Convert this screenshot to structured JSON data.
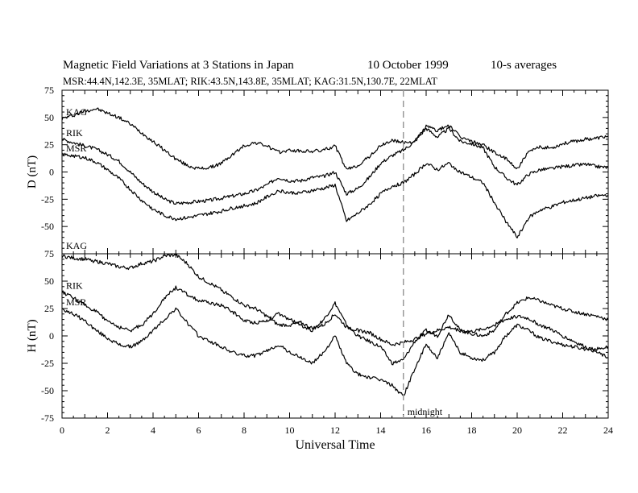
{
  "header": {
    "title": "Magnetic Field Variations at 3 Stations in Japan",
    "date": "10 October 1999",
    "averaging": "10-s averages",
    "stations_info": "MSR:44.4N,142.3E, 35MLAT;   RIK:43.5N,143.8E, 35MLAT;   KAG:31.5N,130.7E, 22MLAT"
  },
  "annotation": {
    "midnight_label": "midnight",
    "midnight_ut": 15
  },
  "colors": {
    "line": "#000000",
    "midnight_line": "#999999"
  },
  "chart_data": [
    {
      "type": "line",
      "ylabel": "D (nT)",
      "xlabel": "",
      "xlim": [
        0,
        24
      ],
      "ylim": [
        -75,
        75
      ],
      "yticks": [
        -75,
        -50,
        -25,
        0,
        25,
        50,
        75
      ],
      "ytick_labels": [
        "-75",
        "-50",
        "-25",
        "0",
        "25",
        "50",
        "75"
      ],
      "x": [
        0,
        0.5,
        1,
        1.5,
        2,
        2.5,
        3,
        3.5,
        4,
        4.5,
        5,
        5.5,
        6,
        6.5,
        7,
        7.5,
        8,
        8.5,
        9,
        9.5,
        10,
        10.5,
        11,
        11.5,
        12,
        12.5,
        13,
        13.5,
        14,
        14.5,
        15,
        15.5,
        16,
        16.5,
        17,
        17.5,
        18,
        18.5,
        19,
        19.5,
        20,
        20.5,
        21,
        21.5,
        22,
        22.5,
        23,
        23.5,
        24
      ],
      "series": [
        {
          "name": "KAG",
          "values": [
            49,
            52,
            56,
            58,
            54,
            50,
            44,
            36,
            28,
            20,
            12,
            6,
            3,
            4,
            8,
            16,
            24,
            27,
            24,
            18,
            20,
            19,
            19,
            20,
            24,
            2,
            6,
            14,
            24,
            29,
            27,
            28,
            42,
            38,
            43,
            32,
            28,
            25,
            18,
            12,
            3,
            18,
            23,
            22,
            26,
            28,
            30,
            31,
            33
          ]
        },
        {
          "name": "RIK",
          "values": [
            30,
            27,
            24,
            21,
            16,
            10,
            0,
            -10,
            -18,
            -25,
            -29,
            -28,
            -27,
            -26,
            -24,
            -22,
            -20,
            -17,
            -12,
            -5,
            -8,
            -8,
            -5,
            -4,
            0,
            -20,
            -15,
            -5,
            8,
            15,
            20,
            28,
            40,
            32,
            40,
            28,
            26,
            22,
            5,
            -5,
            -12,
            -2,
            2,
            3,
            5,
            6,
            7,
            5,
            4
          ]
        },
        {
          "name": "MSR",
          "values": [
            16,
            15,
            13,
            9,
            2,
            -6,
            -16,
            -26,
            -34,
            -40,
            -43,
            -42,
            -40,
            -38,
            -36,
            -33,
            -31,
            -29,
            -23,
            -17,
            -19,
            -19,
            -17,
            -15,
            -12,
            -45,
            -38,
            -30,
            -20,
            -13,
            -10,
            -2,
            8,
            2,
            8,
            0,
            -5,
            -10,
            -28,
            -45,
            -60,
            -42,
            -35,
            -32,
            -28,
            -26,
            -24,
            -22,
            -21
          ]
        }
      ]
    },
    {
      "type": "line",
      "ylabel": "H (nT)",
      "xlabel": "Universal Time",
      "xlim": [
        0,
        24
      ],
      "ylim": [
        -75,
        75
      ],
      "xticks": [
        0,
        2,
        4,
        6,
        8,
        10,
        12,
        14,
        16,
        18,
        20,
        22,
        24
      ],
      "xtick_labels": [
        "0",
        "2",
        "4",
        "6",
        "8",
        "10",
        "12",
        "14",
        "16",
        "18",
        "20",
        "22",
        "24"
      ],
      "yticks": [
        -75,
        -50,
        -25,
        0,
        25,
        50,
        75
      ],
      "ytick_labels": [
        "-75",
        "-50",
        "-25",
        "0",
        "25",
        "50",
        "75"
      ],
      "x": [
        0,
        0.5,
        1,
        1.5,
        2,
        2.5,
        3,
        3.5,
        4,
        4.5,
        5,
        5.5,
        6,
        6.5,
        7,
        7.5,
        8,
        8.5,
        9,
        9.5,
        10,
        10.5,
        11,
        11.5,
        12,
        12.5,
        13,
        13.5,
        14,
        14.5,
        15,
        15.5,
        16,
        16.5,
        17,
        17.5,
        18,
        18.5,
        19,
        19.5,
        20,
        20.5,
        21,
        21.5,
        22,
        22.5,
        23,
        23.5,
        24
      ],
      "series": [
        {
          "name": "KAG",
          "values": [
            73,
            71,
            70,
            68,
            66,
            63,
            62,
            66,
            68,
            73,
            74,
            66,
            54,
            48,
            42,
            35,
            28,
            25,
            18,
            10,
            10,
            12,
            7,
            10,
            20,
            8,
            5,
            3,
            -3,
            -8,
            -6,
            -3,
            2,
            5,
            8,
            5,
            4,
            6,
            10,
            15,
            18,
            16,
            10,
            6,
            0,
            -5,
            -10,
            -15,
            -20
          ]
        },
        {
          "name": "RIK",
          "values": [
            40,
            35,
            28,
            22,
            14,
            8,
            5,
            10,
            20,
            35,
            44,
            38,
            32,
            30,
            28,
            22,
            14,
            12,
            14,
            20,
            15,
            10,
            5,
            15,
            30,
            10,
            0,
            -5,
            -10,
            -25,
            -22,
            -5,
            5,
            0,
            20,
            5,
            2,
            0,
            5,
            20,
            30,
            35,
            32,
            28,
            25,
            22,
            20,
            18,
            15
          ]
        },
        {
          "name": "MSR",
          "values": [
            25,
            20,
            14,
            5,
            -2,
            -8,
            -10,
            -5,
            5,
            15,
            25,
            12,
            0,
            -5,
            -10,
            -15,
            -18,
            -18,
            -14,
            -8,
            -15,
            -20,
            -25,
            -15,
            0,
            -25,
            -35,
            -38,
            -40,
            -45,
            -55,
            -30,
            -8,
            -20,
            2,
            -15,
            -20,
            -22,
            -15,
            0,
            10,
            5,
            -2,
            -5,
            -8,
            -10,
            -12,
            -12,
            -10
          ]
        }
      ]
    }
  ]
}
